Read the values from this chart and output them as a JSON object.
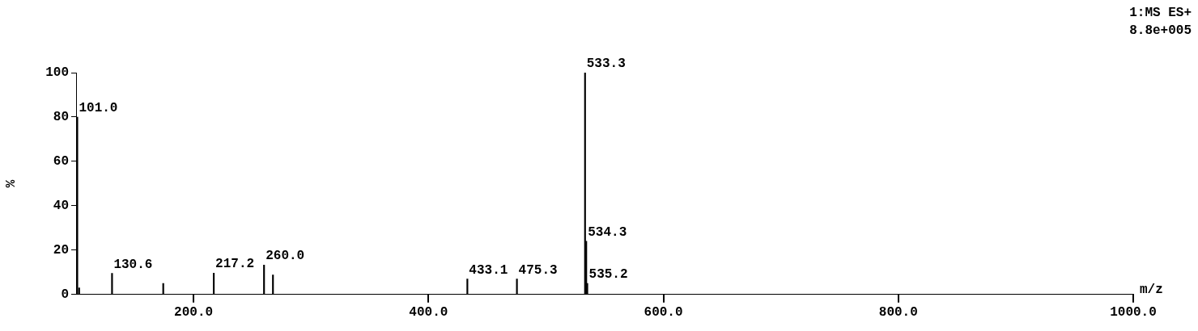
{
  "chart_data": {
    "type": "bar",
    "xlabel": "m/z",
    "ylabel": "%",
    "x": [
      101.0,
      102.6,
      130.6,
      174.2,
      217.2,
      260.0,
      267.6,
      433.1,
      475.3,
      533.3,
      534.3,
      535.2
    ],
    "values": [
      80,
      3,
      9.5,
      5,
      9.6,
      13.3,
      8.8,
      7,
      7,
      100,
      24,
      5
    ],
    "annotations": [
      "1:MS ES+",
      "8.8e+005",
      {
        "text": "101.0",
        "x": 101.0,
        "y": 80
      },
      {
        "text": "130.6",
        "x": 130.6,
        "y": 9.5
      },
      {
        "text": "217.2",
        "x": 217.2,
        "y": 9.6
      },
      {
        "text": "260.0",
        "x": 260.0,
        "y": 13.3
      },
      {
        "text": "433.1",
        "x": 433.1,
        "y": 7
      },
      {
        "text": "475.3",
        "x": 475.3,
        "y": 7
      },
      {
        "text": "533.3",
        "x": 533.3,
        "y": 100
      },
      {
        "text": "534.3",
        "x": 534.3,
        "y": 24
      },
      {
        "text": "535.2",
        "x": 535.2,
        "y": 5
      }
    ],
    "color": "#000000",
    "xlim": [
      100,
      1000
    ],
    "xticks": [
      {
        "value": 200,
        "label": "200.0"
      },
      {
        "value": 400,
        "label": "400.0"
      },
      {
        "value": 600,
        "label": "600.0"
      },
      {
        "value": 800,
        "label": "800.0"
      },
      {
        "value": 1000,
        "label": "1000.0"
      }
    ],
    "ylim": [
      0,
      100
    ],
    "yticks": [
      0,
      20,
      40,
      60,
      80,
      100
    ],
    "grid": false,
    "legend": false
  }
}
